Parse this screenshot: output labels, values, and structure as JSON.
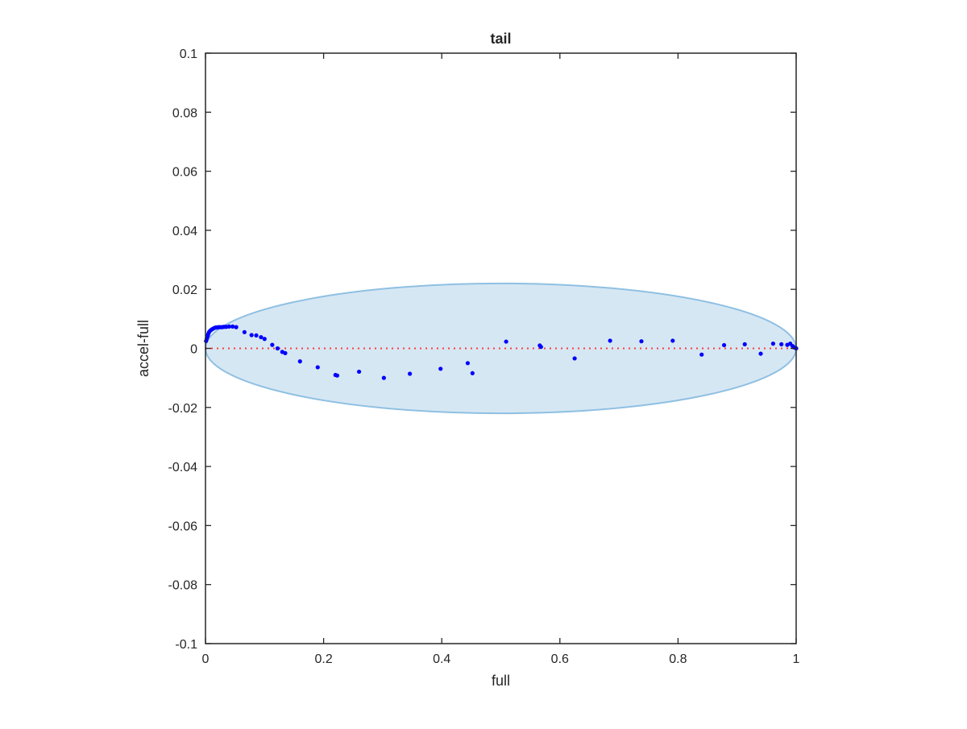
{
  "chart_data": {
    "type": "scatter",
    "title": "tail",
    "xlabel": "full",
    "ylabel": "accel-full",
    "xlim": [
      0,
      1
    ],
    "ylim": [
      -0.1,
      0.1
    ],
    "x_ticks": [
      0,
      0.2,
      0.4,
      0.6,
      0.8,
      1
    ],
    "x_tick_labels": [
      "0",
      "0.2",
      "0.4",
      "0.6",
      "0.8",
      "1"
    ],
    "y_ticks": [
      -0.1,
      -0.08,
      -0.06,
      -0.04,
      -0.02,
      0,
      0.02,
      0.04,
      0.06,
      0.08,
      0.1
    ],
    "y_tick_labels": [
      "-0.1",
      "-0.08",
      "-0.06",
      "-0.04",
      "-0.02",
      "0",
      "0.02",
      "0.04",
      "0.06",
      "0.08",
      "0.1"
    ],
    "grid": false,
    "colors": {
      "points": "#0000ff",
      "zero_line": "#ff3b3b",
      "ellipse_fill": "#d6e7f4",
      "ellipse_stroke": "#8fc0e2",
      "axes": "#262626"
    },
    "zero_line": {
      "y": 0,
      "style": "dotted"
    },
    "ellipse": {
      "center_x": 0.5,
      "center_y": 0,
      "radius_x": 0.5,
      "radius_y": 0.022
    },
    "series": [
      {
        "x": [
          0.001,
          0.002,
          0.003,
          0.004,
          0.005,
          0.006,
          0.008,
          0.01,
          0.012,
          0.014,
          0.016,
          0.018,
          0.02,
          0.022,
          0.025,
          0.028,
          0.031,
          0.035,
          0.04,
          0.046,
          0.052,
          0.066,
          0.078,
          0.086,
          0.094,
          0.1,
          0.113,
          0.122,
          0.13,
          0.135,
          0.16,
          0.19,
          0.22,
          0.223,
          0.26,
          0.302,
          0.346,
          0.398,
          0.444,
          0.452,
          0.509,
          0.566,
          0.568,
          0.625,
          0.685,
          0.738,
          0.791,
          0.84,
          0.878,
          0.913,
          0.94,
          0.961,
          0.975,
          0.985,
          0.99,
          0.994,
          0.997,
          1.0
        ],
        "y": [
          0.0025,
          0.0032,
          0.0038,
          0.0044,
          0.005,
          0.0055,
          0.006,
          0.0063,
          0.0066,
          0.0068,
          0.007,
          0.0071,
          0.0071,
          0.0072,
          0.0072,
          0.0072,
          0.0073,
          0.0073,
          0.0074,
          0.0074,
          0.0072,
          0.0055,
          0.0045,
          0.0044,
          0.0038,
          0.0032,
          0.0012,
          0.0,
          -0.0012,
          -0.0016,
          -0.0044,
          -0.0064,
          -0.009,
          -0.0092,
          -0.0079,
          -0.01,
          -0.0086,
          -0.0069,
          -0.005,
          -0.0084,
          0.0023,
          0.001,
          0.0005,
          -0.0034,
          0.0026,
          0.0024,
          0.0026,
          -0.0021,
          0.0011,
          0.0014,
          -0.0018,
          0.0016,
          0.0014,
          0.0012,
          0.0016,
          0.0008,
          0.0003,
          0.0
        ]
      }
    ]
  }
}
